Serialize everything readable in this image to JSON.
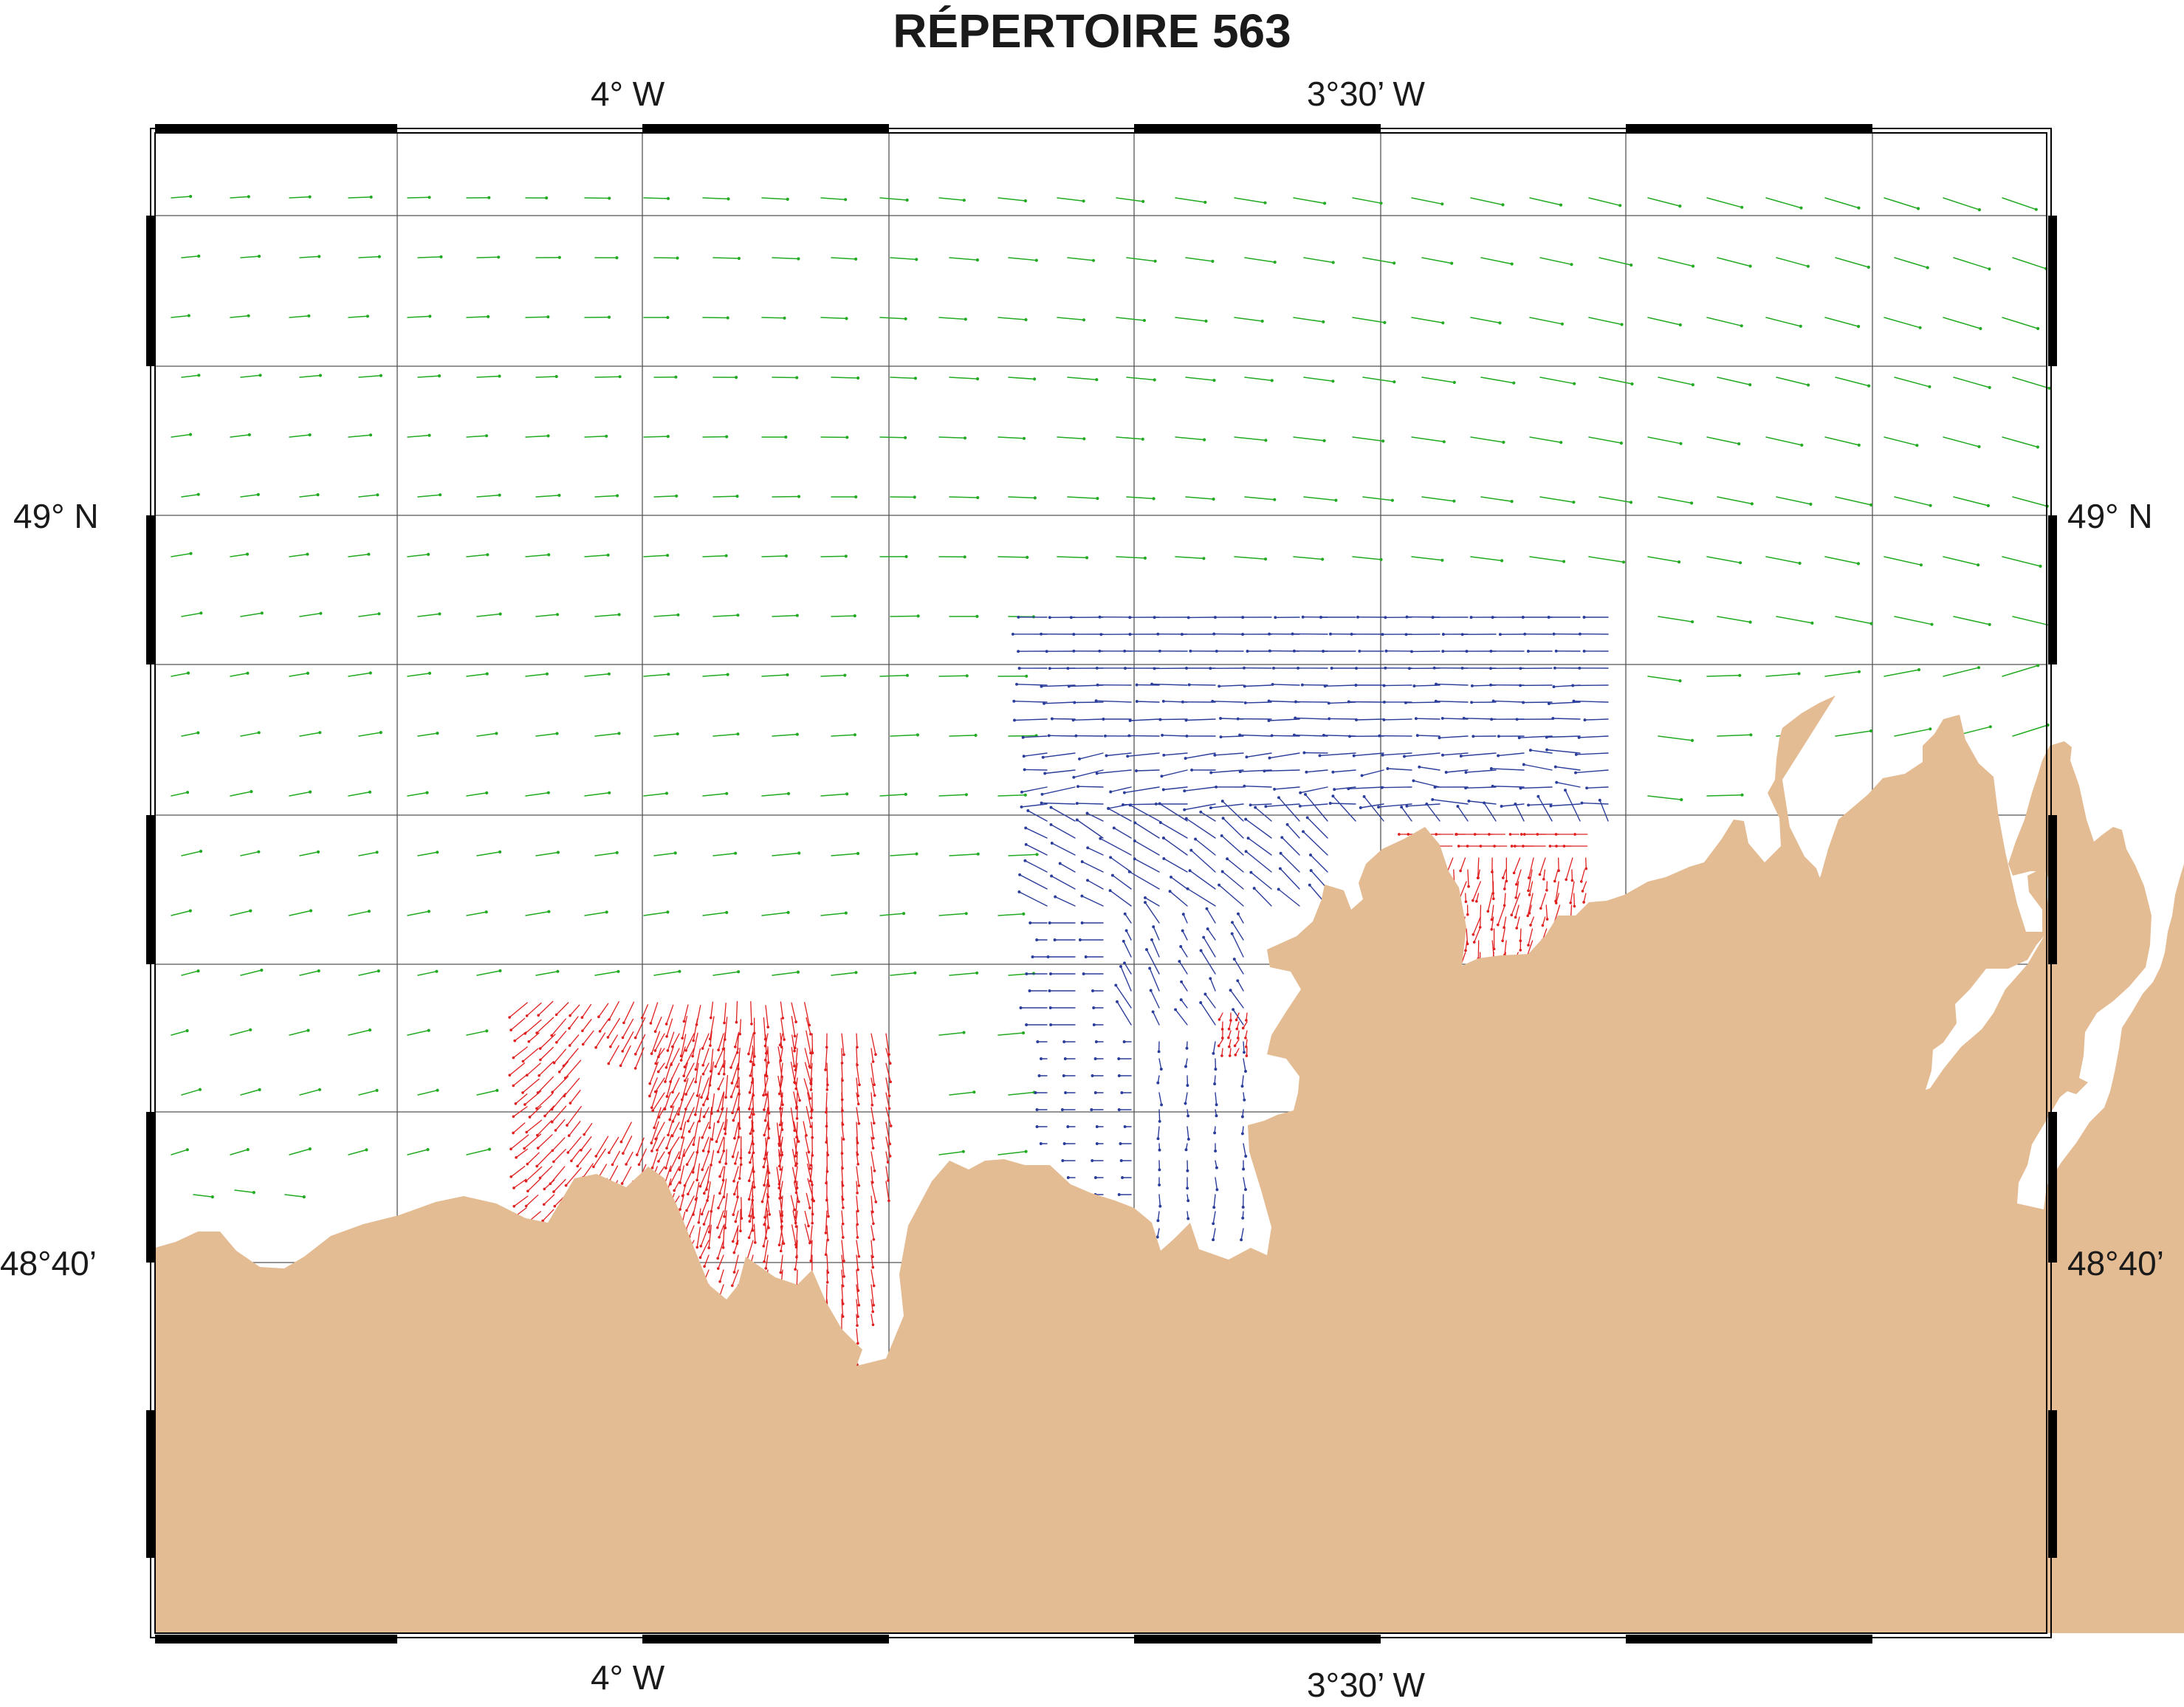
{
  "title": "RÉPERTOIRE 563",
  "axes": {
    "top": [
      "4° W",
      "3°30’ W"
    ],
    "bottom": [
      "4° W",
      "3°30’ W"
    ],
    "left": [
      "49° N",
      "48°40’"
    ],
    "right": [
      "49° N",
      "48°40’"
    ]
  },
  "colors": {
    "land": "#E4BC94",
    "offshore_vectors": "#22AA22",
    "zone_a_vectors": "#2B3D9A",
    "zone_b_vectors": "#E02020",
    "grid": "#555555",
    "frame": "#000000"
  }
}
